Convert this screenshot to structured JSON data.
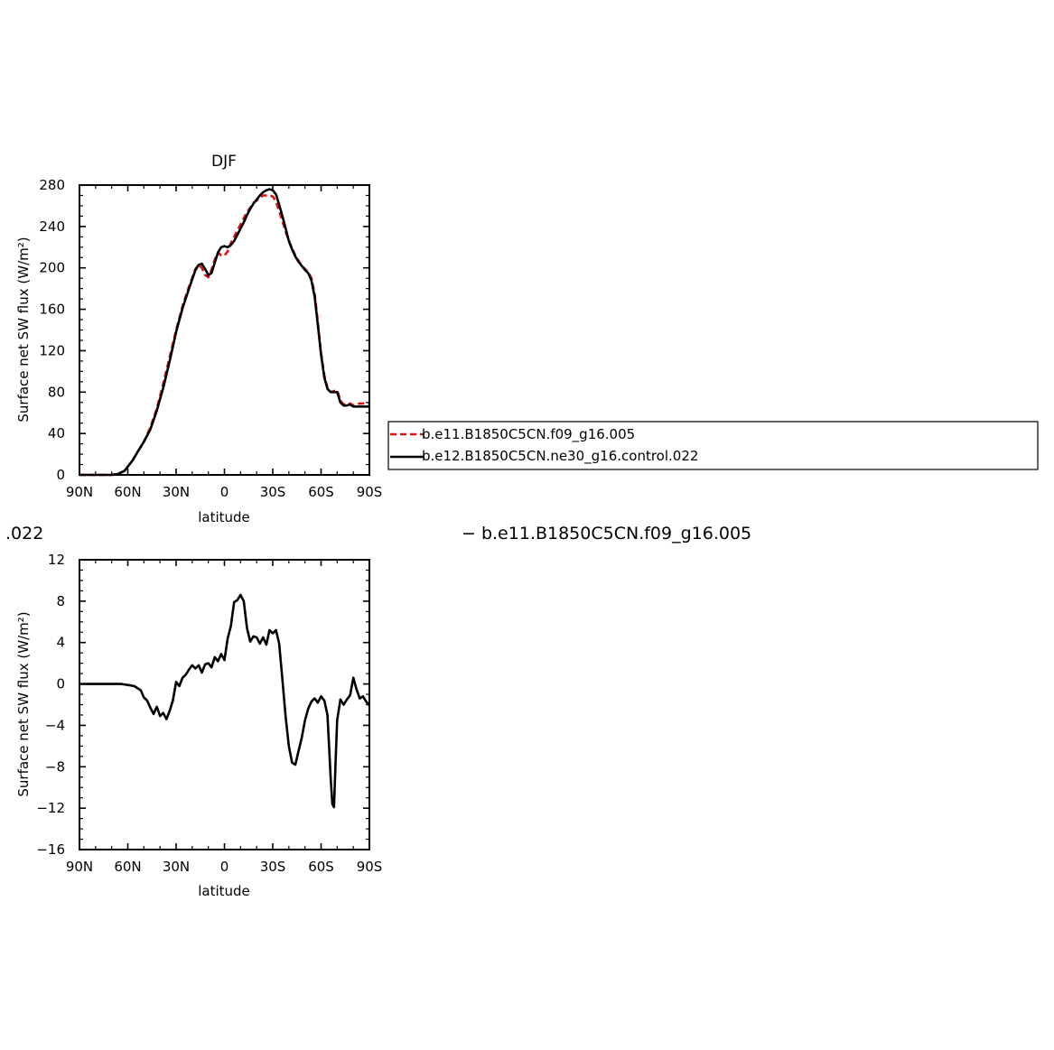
{
  "chart_data": [
    {
      "type": "line",
      "title": "DJF",
      "xlabel": "latitude",
      "ylabel": "Surface net SW flux (W/m²)",
      "xlim": [
        90,
        -90
      ],
      "ylim": [
        0,
        280
      ],
      "xticks": [
        {
          "value": 90,
          "label": "90N"
        },
        {
          "value": 60,
          "label": "60N"
        },
        {
          "value": 30,
          "label": "30N"
        },
        {
          "value": 0,
          "label": "0"
        },
        {
          "value": -30,
          "label": "30S"
        },
        {
          "value": -60,
          "label": "60S"
        },
        {
          "value": -90,
          "label": "90S"
        }
      ],
      "yticks": [
        0,
        40,
        80,
        120,
        160,
        200,
        240,
        280
      ],
      "legend": {
        "placement": "right",
        "entries": [
          "b.e11.B1850C5CN.f09_g16.005",
          "b.e12.B1850C5CN.ne30_g16.control.022"
        ]
      },
      "series": [
        {
          "name": "b.e11.B1850C5CN.f09_g16.005",
          "color": "#e01010",
          "dash": true,
          "x": [
            90,
            80,
            70,
            66,
            62,
            60,
            57,
            54,
            50,
            46,
            42,
            38,
            34,
            30,
            26,
            22,
            18,
            16,
            14,
            12,
            10,
            8,
            6,
            4,
            2,
            0,
            -2,
            -4,
            -6,
            -8,
            -10,
            -12,
            -14,
            -16,
            -18,
            -20,
            -22,
            -24,
            -26,
            -28,
            -30,
            -32,
            -34,
            -36,
            -38,
            -40,
            -42,
            -44,
            -46,
            -48,
            -50,
            -52,
            -54,
            -56,
            -58,
            -60,
            -62,
            -64,
            -66,
            -68,
            -70,
            -72,
            -74,
            -76,
            -78,
            -80,
            -82,
            -84,
            -86,
            -88,
            -90
          ],
          "y": [
            0,
            0,
            0,
            1,
            4,
            8,
            14,
            22,
            32,
            46,
            64,
            88,
            114,
            140,
            163,
            182,
            199,
            203,
            200,
            193,
            191,
            198,
            208,
            215,
            212,
            212,
            216,
            224,
            230,
            236,
            242,
            248,
            254,
            258,
            263,
            265,
            268,
            270,
            270,
            270,
            269,
            264,
            255,
            245,
            235,
            226,
            219,
            212,
            207,
            202,
            199,
            196,
            190,
            175,
            148,
            118,
            96,
            84,
            80,
            81,
            82,
            72,
            68,
            68,
            69,
            67,
            68,
            69,
            69,
            69,
            69
          ]
        },
        {
          "name": "b.e12.B1850C5CN.ne30_g16.control.022",
          "color": "#000000",
          "dash": false,
          "x": [
            90,
            80,
            70,
            66,
            62,
            60,
            57,
            54,
            50,
            46,
            42,
            38,
            34,
            30,
            26,
            22,
            18,
            16,
            14,
            12,
            10,
            8,
            6,
            4,
            2,
            0,
            -2,
            -4,
            -6,
            -8,
            -10,
            -12,
            -14,
            -16,
            -18,
            -20,
            -22,
            -24,
            -26,
            -28,
            -30,
            -32,
            -34,
            -36,
            -38,
            -40,
            -42,
            -44,
            -46,
            -48,
            -50,
            -52,
            -54,
            -56,
            -58,
            -60,
            -62,
            -64,
            -66,
            -68,
            -70,
            -72,
            -74,
            -76,
            -78,
            -80,
            -82,
            -84,
            -86,
            -88,
            -90
          ],
          "y": [
            0,
            0,
            0,
            1,
            4,
            8,
            14,
            22,
            32,
            44,
            62,
            84,
            110,
            138,
            161,
            180,
            198,
            203,
            204,
            199,
            193,
            195,
            205,
            215,
            220,
            221,
            220,
            222,
            226,
            232,
            238,
            244,
            251,
            257,
            262,
            266,
            270,
            273,
            275,
            276,
            275,
            271,
            261,
            250,
            238,
            226,
            218,
            211,
            206,
            202,
            198,
            195,
            188,
            172,
            145,
            116,
            94,
            83,
            80,
            80,
            80,
            70,
            67,
            67,
            68,
            66,
            66,
            66,
            66,
            66,
            66
          ]
        }
      ]
    },
    {
      "type": "line",
      "title": "",
      "xlabel": "latitude",
      "ylabel": "Surface net SW flux (W/m²)",
      "xlim": [
        90,
        -90
      ],
      "ylim": [
        -16,
        12
      ],
      "xticks": [
        {
          "value": 90,
          "label": "90N"
        },
        {
          "value": 60,
          "label": "60N"
        },
        {
          "value": 30,
          "label": "30N"
        },
        {
          "value": 0,
          "label": "0"
        },
        {
          "value": -30,
          "label": "30S"
        },
        {
          "value": -60,
          "label": "60S"
        },
        {
          "value": -90,
          "label": "90S"
        }
      ],
      "yticks": [
        -16,
        -12,
        -8,
        -4,
        0,
        4,
        8,
        12
      ],
      "header_left": ".022",
      "header_right": "−  b.e11.B1850C5CN.f09_g16.005",
      "series": [
        {
          "color": "#000000",
          "x": [
            90,
            80,
            70,
            64,
            60,
            56,
            52,
            50,
            48,
            46,
            44,
            42,
            40,
            38,
            36,
            34,
            32,
            30,
            28,
            26,
            24,
            22,
            20,
            18,
            16,
            14,
            12,
            10,
            8,
            6,
            4,
            2,
            0,
            -2,
            -4,
            -6,
            -8,
            -10,
            -12,
            -14,
            -16,
            -18,
            -20,
            -22,
            -24,
            -26,
            -28,
            -30,
            -32,
            -34,
            -36,
            -38,
            -40,
            -42,
            -44,
            -46,
            -48,
            -50,
            -52,
            -54,
            -56,
            -58,
            -60,
            -62,
            -64,
            -66,
            -67,
            -68,
            -69,
            -70,
            -72,
            -74,
            -76,
            -78,
            -80,
            -82,
            -84,
            -86,
            -88,
            -90
          ],
          "y": [
            0,
            0,
            0,
            0,
            -0.1,
            -0.2,
            -0.6,
            -1.3,
            -1.6,
            -2.3,
            -2.9,
            -2.2,
            -3.1,
            -2.8,
            -3.4,
            -2.6,
            -1.6,
            0.2,
            -0.2,
            0.6,
            0.9,
            1.4,
            1.8,
            1.5,
            1.8,
            1.1,
            1.9,
            2.0,
            1.6,
            2.6,
            2.2,
            2.9,
            2.3,
            4.4,
            5.6,
            7.9,
            8.1,
            8.6,
            8.0,
            5.4,
            4.1,
            4.6,
            4.5,
            3.9,
            4.5,
            3.8,
            5.2,
            4.9,
            5.2,
            3.9,
            0.4,
            -3.2,
            -6.0,
            -7.6,
            -7.8,
            -6.5,
            -5.2,
            -3.5,
            -2.4,
            -1.7,
            -1.4,
            -1.8,
            -1.2,
            -1.6,
            -3.0,
            -9.2,
            -11.6,
            -11.9,
            -7.5,
            -3.5,
            -1.5,
            -2.0,
            -1.5,
            -1.1,
            0.6,
            -0.5,
            -1.4,
            -1.2,
            -1.7,
            -2.1
          ]
        }
      ]
    }
  ]
}
